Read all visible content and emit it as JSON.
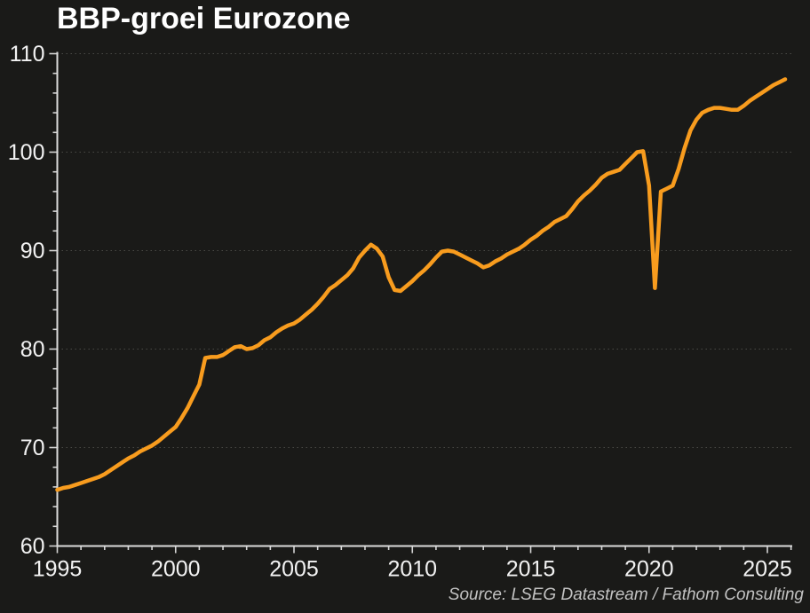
{
  "header": {
    "title": "BBP-groei Eurozone"
  },
  "footer": {
    "source": "Source: LSEG Datastream / Fathom Consulting"
  },
  "colors": {
    "background": "#1a1a18",
    "line": "#F89C1E",
    "axis": "#dcdcdc",
    "grid": "#4a4a46",
    "tick_label": "#f2f2f2",
    "title": "#ffffff",
    "source_text": "#c2c2c2"
  },
  "chart_data": {
    "type": "line",
    "title": "BBP-groei Eurozone",
    "xlabel": "",
    "ylabel": "",
    "source": "Source: LSEG Datastream / Fathom Consulting",
    "x_range": [
      1995,
      2026.05
    ],
    "ylim": [
      60,
      110
    ],
    "y_ticks_major": [
      60,
      70,
      80,
      90,
      100,
      110
    ],
    "y_tick_labels": [
      "60",
      "70",
      "80",
      "90",
      "100",
      "110"
    ],
    "y_minor_step": 2,
    "x_ticks_major": [
      1995,
      2000,
      2005,
      2010,
      2015,
      2020,
      2025
    ],
    "x_tick_labels": [
      "1995",
      "2000",
      "2005",
      "2010",
      "2015",
      "2020",
      "2025"
    ],
    "x_minor_step": 1,
    "grid": "horizontal dotted lines at major y ticks",
    "legend": "none",
    "series": [
      {
        "name": "Eurozone real GDP index (quarterly)",
        "color": "#F89C1E",
        "line_width": 4.5,
        "x_start": 1995.0,
        "x_step": 0.25,
        "values": [
          65.7,
          65.9,
          66.0,
          66.2,
          66.4,
          66.6,
          66.8,
          67.0,
          67.3,
          67.7,
          68.1,
          68.5,
          68.9,
          69.2,
          69.6,
          69.9,
          70.2,
          70.6,
          71.1,
          71.6,
          72.1,
          73.0,
          74.0,
          75.2,
          76.4,
          79.1,
          79.2,
          79.2,
          79.4,
          79.8,
          80.2,
          80.3,
          80.0,
          80.1,
          80.4,
          80.9,
          81.2,
          81.7,
          82.1,
          82.4,
          82.6,
          83.0,
          83.5,
          84.0,
          84.6,
          85.3,
          86.1,
          86.5,
          87.0,
          87.5,
          88.2,
          89.3,
          90.0,
          90.6,
          90.2,
          89.4,
          87.3,
          86.0,
          85.9,
          86.4,
          86.9,
          87.5,
          88.0,
          88.6,
          89.3,
          89.9,
          90.0,
          89.9,
          89.6,
          89.3,
          89.0,
          88.7,
          88.3,
          88.5,
          88.9,
          89.2,
          89.6,
          89.9,
          90.2,
          90.6,
          91.1,
          91.5,
          92.0,
          92.4,
          92.9,
          93.2,
          93.5,
          94.2,
          95.0,
          95.6,
          96.1,
          96.7,
          97.4,
          97.8,
          98.0,
          98.2,
          98.8,
          99.4,
          100.0,
          100.1,
          96.6,
          86.2,
          96.0,
          96.3,
          96.6,
          98.3,
          100.4,
          102.2,
          103.3,
          104.0,
          104.3,
          104.5,
          104.5,
          104.4,
          104.3,
          104.3,
          104.7,
          105.2,
          105.6,
          106.0,
          106.4,
          106.8,
          107.1,
          107.4
        ]
      }
    ]
  }
}
